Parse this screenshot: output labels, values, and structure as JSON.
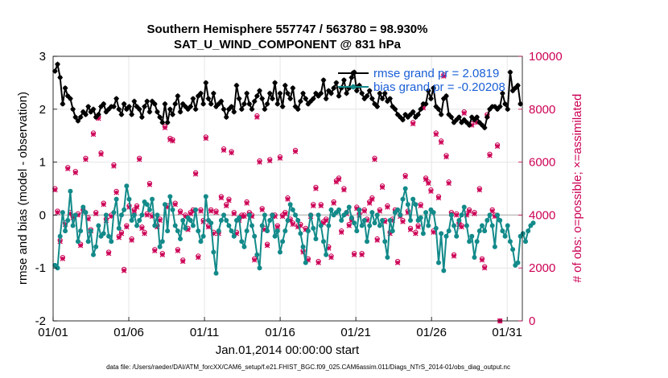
{
  "chart_data": {
    "type": "line",
    "title_line1": "Southern Hemisphere 557747 / 563780 = 98.930%",
    "title_line2": "SAT_U_WIND_COMPONENT @ 831 hPa",
    "xlabel": "Jan.01,2014 00:00:00 start",
    "ylabel_left": "rmse and bias (model - observation)",
    "ylabel_right": "# of obs: o=possible; ×=assimilated",
    "footnote": "data file: /Users/raeder/DAI/ATM_forcXX/CAM6_setup/f.e21.FHIST_BGC.f09_025.CAM6assim.011/Diags_NTrS_2014-01/obs_diag_output.nc",
    "x_ticks": [
      "01/01",
      "01/06",
      "01/11",
      "01/16",
      "01/21",
      "01/26",
      "01/31"
    ],
    "x_range_days": [
      0,
      31
    ],
    "y_left_range": [
      -2,
      3
    ],
    "y_left_ticks": [
      "-2",
      "-1",
      "0",
      "1",
      "2",
      "3"
    ],
    "y_right_range": [
      0,
      10000
    ],
    "y_right_ticks": [
      "0",
      "2000",
      "4000",
      "6000",
      "8000",
      "10000"
    ],
    "reference_line_y": 0,
    "series": [
      {
        "name": "rmse",
        "legend": "rmse grand pr = 2.0819",
        "color": "#000000",
        "marker": "star-circle",
        "values": [
          2.72,
          2.85,
          2.6,
          2.1,
          2.4,
          2.25,
          2.2,
          2.0,
          1.85,
          1.78,
          1.85,
          1.95,
          1.9,
          2.05,
          1.95,
          2.0,
          1.85,
          1.9,
          2.05,
          2.1,
          1.95,
          2.0,
          2.05,
          2.05,
          2.2,
          2.0,
          1.9,
          2.1,
          2.0,
          2.05,
          1.9,
          2.15,
          2.05,
          2.0,
          1.85,
          2.05,
          2.15,
          1.95,
          2.15,
          2.1,
          1.95,
          1.85,
          1.75,
          2.1,
          1.75,
          2.0,
          1.9,
          2.1,
          2.25,
          1.95,
          2.1,
          2.05,
          2.0,
          2.05,
          2.2,
          2.0,
          2.25,
          2.3,
          2.1,
          2.5,
          2.2,
          2.1,
          2.3,
          2.05,
          2.1,
          2.15,
          2.0,
          1.85,
          2.0,
          2.05,
          1.95,
          2.45,
          2.2,
          2.0,
          2.1,
          2.3,
          2.1,
          2.0,
          2.15,
          2.25,
          2.35,
          2.2,
          2.0,
          2.1,
          2.3,
          2.2,
          2.5,
          2.1,
          2.3,
          2.05,
          2.45,
          2.3,
          2.2,
          2.4,
          2.05,
          2.0,
          2.15,
          2.3,
          2.2,
          2.1,
          2.15,
          2.2,
          2.3,
          2.25,
          2.3,
          2.55,
          2.2,
          2.35,
          2.3,
          2.4,
          2.5,
          2.25,
          2.4,
          2.55,
          2.3,
          2.4,
          2.6,
          2.7,
          2.35,
          2.45,
          2.3,
          2.2,
          2.25,
          2.35,
          2.2,
          2.1,
          2.05,
          2.3,
          2.2,
          2.3,
          2.15,
          2.2,
          2.05,
          2.0,
          1.9,
          1.85,
          1.8,
          1.9,
          1.85,
          1.9,
          1.95,
          1.85,
          1.9,
          2.0,
          2.1,
          2.1,
          2.35,
          2.2,
          2.4,
          2.05,
          2.0,
          1.9,
          2.2,
          2.25,
          1.9,
          1.85,
          1.75,
          1.8,
          1.85,
          1.75,
          1.8,
          1.75,
          1.7,
          1.85,
          1.8,
          1.85,
          1.75,
          1.7,
          1.65,
          1.85,
          2.0,
          2.05,
          2.05,
          2.0,
          2.05,
          2.3,
          2.1,
          2.0,
          2.7,
          2.35,
          2.4,
          2.45,
          2.1
        ]
      },
      {
        "name": "bias",
        "legend": "bias grand pr = -0.20208",
        "color": "#138a8a",
        "marker": "dot",
        "values": [
          -0.95,
          -1.0,
          -0.4,
          0.05,
          -0.3,
          -0.1,
          0.45,
          -0.2,
          0.0,
          -0.5,
          -0.3,
          0.15,
          0.05,
          -0.5,
          -0.3,
          -0.75,
          -0.6,
          -0.2,
          -0.4,
          -0.35,
          0.0,
          -0.4,
          -0.5,
          0.05,
          0.3,
          -0.25,
          0.0,
          0.1,
          0.55,
          0.3,
          -0.1,
          0.0,
          -0.2,
          -0.1,
          0.0,
          0.25,
          0.2,
          0.1,
          0.3,
          -0.2,
          0.0,
          -0.6,
          -0.5,
          0.2,
          -0.3,
          0.35,
          0.1,
          -0.2,
          -0.3,
          -0.45,
          -0.1,
          -0.25,
          -0.05,
          -0.1,
          -0.2,
          0.1,
          -0.3,
          -0.5,
          -0.4,
          0.35,
          -0.1,
          -0.15,
          -0.7,
          -1.1,
          -0.3,
          -0.1,
          0.0,
          -0.1,
          -0.2,
          -0.3,
          -0.4,
          -0.1,
          -0.05,
          -0.5,
          -0.6,
          -0.3,
          0.0,
          -0.2,
          -0.4,
          -0.75,
          -1.0,
          -0.2,
          0.0,
          -0.3,
          -0.1,
          0.0,
          -0.4,
          -0.3,
          -0.7,
          -0.5,
          -0.3,
          -0.1,
          0.2,
          0.1,
          0.0,
          -0.1,
          -0.35,
          -0.6,
          -0.9,
          -0.3,
          0.0,
          -0.25,
          -0.45,
          0.0,
          -0.2,
          -0.5,
          -0.75,
          -0.2,
          0.1,
          0.0,
          0.05,
          0.1,
          -0.1,
          0.0,
          0.05,
          0.15,
          -0.05,
          -0.15,
          -0.3,
          0.1,
          -0.2,
          -0.1,
          -0.5,
          -0.2,
          0.05,
          -0.15,
          0.0,
          -0.2,
          -0.1,
          -0.5,
          -0.8,
          -0.1,
          -0.3,
          0.05,
          0.1,
          0.0,
          0.3,
          0.5,
          0.2,
          -0.1,
          0.3,
          0.2,
          -0.1,
          -0.05,
          -0.35,
          0.05,
          -0.2,
          0.1,
          0.05,
          -0.25,
          -0.9,
          -0.35,
          -1.05,
          -0.4,
          -0.3,
          0.0,
          -0.2,
          -0.4,
          -0.1,
          0.0,
          0.15,
          -0.2,
          -0.5,
          -0.4,
          -0.8,
          -0.5,
          -0.3,
          -0.2,
          -0.3,
          -0.1,
          0.0,
          -0.2,
          -0.6,
          0.0,
          -0.1,
          -0.3,
          -0.4,
          -0.2,
          -0.5,
          -0.65,
          -0.95,
          -0.9,
          -0.4,
          -0.35,
          -0.5,
          -0.3,
          -0.2,
          -0.15
        ]
      },
      {
        "name": "possible observations",
        "color": "#cc0055",
        "marker": "circle",
        "axis": "right",
        "values": [
          5000,
          4150,
          3050,
          2400,
          3700,
          5800,
          4100,
          3950,
          5650,
          4050,
          2900,
          4200,
          6150,
          3900,
          3450,
          7100,
          4100,
          7700,
          6350,
          4450,
          3850,
          2600,
          4000,
          5900,
          4900,
          3200,
          3350,
          1950,
          3600,
          4350,
          3100,
          4200,
          4350,
          6150,
          3550,
          3350,
          4050,
          5200,
          4000,
          2700,
          3600,
          3850,
          2550,
          7350,
          4350,
          6900,
          6850,
          4450,
          2700,
          4150,
          2300,
          4000,
          3500,
          4100,
          4200,
          5600,
          2450,
          4200,
          3800,
          6950,
          3600,
          4200,
          3350,
          4150,
          3350,
          4700,
          6500,
          4400,
          4600,
          6400,
          4100,
          3350,
          3850,
          4000,
          4000,
          4500,
          4100,
          4000,
          2350,
          7750,
          6050,
          4250,
          3500,
          2900,
          6100,
          4000,
          4000,
          3600,
          6200,
          4000,
          4100,
          4650,
          3850,
          3700,
          6450,
          3600,
          3650,
          2650,
          3500,
          2350,
          4000,
          4400,
          5050,
          2250,
          4400,
          3750,
          3850,
          2800,
          2450,
          4500,
          5300,
          5400,
          3400,
          5000,
          4100,
          3650,
          3850,
          2550,
          4300,
          4050,
          2550,
          4200,
          3850,
          4500,
          4650,
          6150,
          3100,
          4200,
          5100,
          3800,
          4350,
          3350,
          3850,
          4200,
          2250,
          4000,
          3800,
          5500,
          4150,
          3500,
          7500,
          3350,
          3600,
          4400,
          8100,
          5400,
          5250,
          4950,
          3400,
          7100,
          4700,
          6800,
          9300,
          6250,
          5250,
          4100,
          2500,
          4050,
          3700,
          3600,
          7900,
          4050,
          4200,
          7450,
          4100,
          7550,
          5000,
          2350,
          2050,
          7800,
          6300,
          4200,
          4000,
          6650,
          0
        ]
      },
      {
        "name": "assimilated observations",
        "color": "#cc0055",
        "marker": "x",
        "axis": "right",
        "values": [
          4950,
          4100,
          3000,
          2350,
          3650,
          5750,
          4050,
          3900,
          5600,
          4000,
          2850,
          4150,
          6100,
          3850,
          3400,
          7050,
          4050,
          7650,
          6300,
          4400,
          3800,
          2550,
          3950,
          5850,
          4850,
          3150,
          3300,
          1900,
          3550,
          4300,
          3050,
          4150,
          4300,
          6100,
          3500,
          3300,
          4000,
          5150,
          3950,
          2650,
          3550,
          3800,
          2500,
          7300,
          4300,
          6850,
          6800,
          4400,
          2650,
          4100,
          2250,
          3950,
          3450,
          4050,
          4150,
          5550,
          2400,
          4150,
          3750,
          6900,
          3550,
          4150,
          3300,
          4100,
          3300,
          4650,
          6450,
          4350,
          4550,
          6350,
          4050,
          3300,
          3800,
          3950,
          3950,
          4450,
          4050,
          3950,
          2300,
          7700,
          6000,
          4200,
          3450,
          2850,
          6050,
          3950,
          3950,
          3550,
          6150,
          3950,
          4050,
          4600,
          3800,
          3650,
          6400,
          3550,
          3600,
          2600,
          3450,
          2300,
          3950,
          4350,
          5000,
          2200,
          4350,
          3700,
          3800,
          2750,
          2400,
          4450,
          5250,
          5350,
          3350,
          4950,
          4050,
          3600,
          3800,
          2500,
          4250,
          4000,
          2500,
          4150,
          3800,
          4450,
          4600,
          6100,
          3050,
          4150,
          5050,
          3750,
          4300,
          3300,
          3800,
          4150,
          2200,
          3950,
          3750,
          5450,
          4100,
          3450,
          7450,
          3300,
          3550,
          4350,
          8050,
          5350,
          5200,
          4900,
          3350,
          7050,
          4650,
          6750,
          9250,
          6200,
          5200,
          4050,
          2450,
          4000,
          3650,
          3550,
          7850,
          4000,
          4150,
          7400,
          4050,
          7500,
          4950,
          2300,
          2000,
          7750,
          6250,
          4150,
          3950,
          6600,
          0
        ]
      }
    ]
  }
}
